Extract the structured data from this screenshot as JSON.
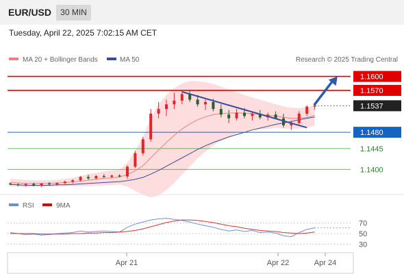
{
  "header": {
    "symbol": "EUR/USD",
    "timeframe": "30 MIN"
  },
  "datetime": "Tuesday, April 22, 2025 7:02:15 AM CET",
  "credit": "Research © 2025 Trading Central",
  "legend": {
    "ma20_bb": "MA 20 + Bollinger Bands",
    "ma50": "MA 50",
    "rsi": "RSI",
    "rsi_ma": "9MA"
  },
  "colors": {
    "resistance": "#e00000",
    "support": "#1565c0",
    "target": "#2e9a2e",
    "current": "#222222",
    "bollinger_fill": "#fdd7d7",
    "ma20": "#f08080",
    "ma50": "#3a4b9a",
    "trendline": "#3a4b9a",
    "arrow": "#2d5ba8",
    "candle_up": "#e0262d",
    "candle_down": "#2a5e2a"
  },
  "chart_data": [
    {
      "type": "candlestick",
      "title": "",
      "ylim": [
        1.1355,
        1.162
      ],
      "x_tick_labels": [
        "Apr 21",
        "Apr 22",
        "Apr 24"
      ],
      "levels": [
        {
          "name": "1.1600",
          "value": 1.16,
          "kind": "resistance"
        },
        {
          "name": "1.1570",
          "value": 1.157,
          "kind": "resistance"
        },
        {
          "name": "1.1537",
          "value": 1.1537,
          "kind": "current"
        },
        {
          "name": "1.1480",
          "value": 1.148,
          "kind": "support"
        },
        {
          "name": "1.1445",
          "value": 1.1445,
          "kind": "target"
        },
        {
          "name": "1.1400",
          "value": 1.14,
          "kind": "target"
        }
      ],
      "trendline": {
        "from": [
          22,
          1.1567
        ],
        "to": [
          38,
          1.149
        ]
      },
      "forecast_arrow": {
        "from": [
          39,
          1.154
        ],
        "to": [
          42,
          1.16
        ]
      },
      "candles": [
        [
          1.137,
          1.1372,
          1.1366,
          1.1368
        ],
        [
          1.1368,
          1.1371,
          1.1364,
          1.1366
        ],
        [
          1.1366,
          1.137,
          1.1363,
          1.1369
        ],
        [
          1.1369,
          1.1372,
          1.1364,
          1.1365
        ],
        [
          1.1365,
          1.1371,
          1.1362,
          1.137
        ],
        [
          1.137,
          1.1373,
          1.1366,
          1.1368
        ],
        [
          1.1368,
          1.1372,
          1.1365,
          1.1371
        ],
        [
          1.1371,
          1.1376,
          1.1368,
          1.1374
        ],
        [
          1.1374,
          1.1379,
          1.137,
          1.1377
        ],
        [
          1.1377,
          1.1386,
          1.1374,
          1.1384
        ],
        [
          1.1384,
          1.1389,
          1.1378,
          1.1381
        ],
        [
          1.1381,
          1.1388,
          1.1379,
          1.1386
        ],
        [
          1.1386,
          1.139,
          1.1382,
          1.1384
        ],
        [
          1.1384,
          1.1389,
          1.1381,
          1.1387
        ],
        [
          1.1387,
          1.139,
          1.1383,
          1.1385
        ],
        [
          1.1385,
          1.1409,
          1.138,
          1.1406
        ],
        [
          1.1406,
          1.144,
          1.1403,
          1.1435
        ],
        [
          1.1435,
          1.147,
          1.143,
          1.1465
        ],
        [
          1.1465,
          1.153,
          1.146,
          1.152
        ],
        [
          1.152,
          1.1545,
          1.151,
          1.153
        ],
        [
          1.153,
          1.155,
          1.1515,
          1.154
        ],
        [
          1.154,
          1.1565,
          1.153,
          1.1548
        ],
        [
          1.1548,
          1.157,
          1.154,
          1.1562
        ],
        [
          1.1562,
          1.157,
          1.1545,
          1.155
        ],
        [
          1.155,
          1.156,
          1.1535,
          1.154
        ],
        [
          1.154,
          1.155,
          1.1528,
          1.1545
        ],
        [
          1.1545,
          1.1552,
          1.1525,
          1.153
        ],
        [
          1.153,
          1.154,
          1.1512,
          1.1518
        ],
        [
          1.1518,
          1.1528,
          1.15,
          1.151
        ],
        [
          1.151,
          1.153,
          1.1505,
          1.1522
        ],
        [
          1.1522,
          1.1532,
          1.151,
          1.1515
        ],
        [
          1.1515,
          1.1525,
          1.1505,
          1.152
        ],
        [
          1.152,
          1.1528,
          1.1508,
          1.1512
        ],
        [
          1.1512,
          1.1522,
          1.1505,
          1.1518
        ],
        [
          1.1518,
          1.1525,
          1.1508,
          1.151
        ],
        [
          1.151,
          1.152,
          1.149,
          1.1495
        ],
        [
          1.1495,
          1.1505,
          1.1485,
          1.15
        ],
        [
          1.15,
          1.1525,
          1.1497,
          1.152
        ],
        [
          1.152,
          1.1538,
          1.1515,
          1.1535
        ],
        [
          1.1535,
          1.1541,
          1.1528,
          1.1537
        ]
      ],
      "ma20": [
        1.1372,
        1.1371,
        1.137,
        1.137,
        1.137,
        1.137,
        1.1371,
        1.1372,
        1.1373,
        1.1375,
        1.1377,
        1.1379,
        1.1381,
        1.1382,
        1.1384,
        1.1389,
        1.1397,
        1.1408,
        1.1425,
        1.1442,
        1.1458,
        1.1473,
        1.1487,
        1.1498,
        1.1507,
        1.1513,
        1.1518,
        1.152,
        1.1521,
        1.1522,
        1.1521,
        1.152,
        1.1518,
        1.1516,
        1.1515,
        1.1512,
        1.151,
        1.151,
        1.1512,
        1.1516
      ],
      "ma50": [
        1.1368,
        1.1367,
        1.1366,
        1.1366,
        1.1366,
        1.1366,
        1.1367,
        1.1367,
        1.1368,
        1.1369,
        1.137,
        1.1371,
        1.1372,
        1.1373,
        1.1374,
        1.1376,
        1.1379,
        1.1383,
        1.139,
        1.1398,
        1.1407,
        1.1416,
        1.1425,
        1.1434,
        1.1443,
        1.1451,
        1.1458,
        1.1464,
        1.147,
        1.1475,
        1.148,
        1.1485,
        1.1489,
        1.1493,
        1.1497,
        1.15,
        1.1503,
        1.1507,
        1.151,
        1.1513
      ],
      "bb_upper": [
        1.138,
        1.1379,
        1.1378,
        1.1377,
        1.1377,
        1.1377,
        1.1378,
        1.138,
        1.1382,
        1.1386,
        1.139,
        1.1393,
        1.1396,
        1.1398,
        1.14,
        1.1415,
        1.144,
        1.147,
        1.151,
        1.154,
        1.156,
        1.1575,
        1.1585,
        1.159,
        1.159,
        1.1588,
        1.1584,
        1.1578,
        1.1572,
        1.1566,
        1.156,
        1.1555,
        1.155,
        1.1545,
        1.154,
        1.1536,
        1.1533,
        1.1532,
        1.1534,
        1.1538
      ],
      "bb_lower": [
        1.1364,
        1.1363,
        1.1362,
        1.1363,
        1.1363,
        1.1363,
        1.1364,
        1.1364,
        1.1364,
        1.1364,
        1.1364,
        1.1365,
        1.1366,
        1.1366,
        1.1368,
        1.1363,
        1.1354,
        1.1346,
        1.134,
        1.1344,
        1.1356,
        1.1371,
        1.1389,
        1.1406,
        1.1424,
        1.1438,
        1.1452,
        1.1462,
        1.147,
        1.1478,
        1.1482,
        1.1485,
        1.1486,
        1.1487,
        1.149,
        1.1488,
        1.1487,
        1.1488,
        1.149,
        1.1494
      ]
    },
    {
      "type": "line",
      "title": "",
      "ylim": [
        20,
        80
      ],
      "y_tick_labels": [
        "70",
        "50",
        "30"
      ],
      "series": [
        {
          "name": "RSI",
          "values": [
            52,
            50,
            48,
            49,
            47,
            48,
            50,
            51,
            52,
            55,
            53,
            54,
            55,
            54,
            53,
            62,
            68,
            72,
            76,
            78,
            79,
            77,
            75,
            72,
            68,
            65,
            62,
            58,
            55,
            57,
            54,
            56,
            52,
            53,
            51,
            46,
            44,
            52,
            58,
            61
          ]
        },
        {
          "name": "9MA",
          "values": [
            50,
            50,
            50,
            50,
            49,
            49,
            49,
            49,
            50,
            50,
            51,
            51,
            52,
            52,
            53,
            54,
            56,
            59,
            63,
            67,
            71,
            74,
            76,
            76,
            75,
            73,
            71,
            68,
            65,
            63,
            60,
            58,
            56,
            55,
            54,
            52,
            51,
            50,
            51,
            53
          ]
        }
      ]
    }
  ]
}
